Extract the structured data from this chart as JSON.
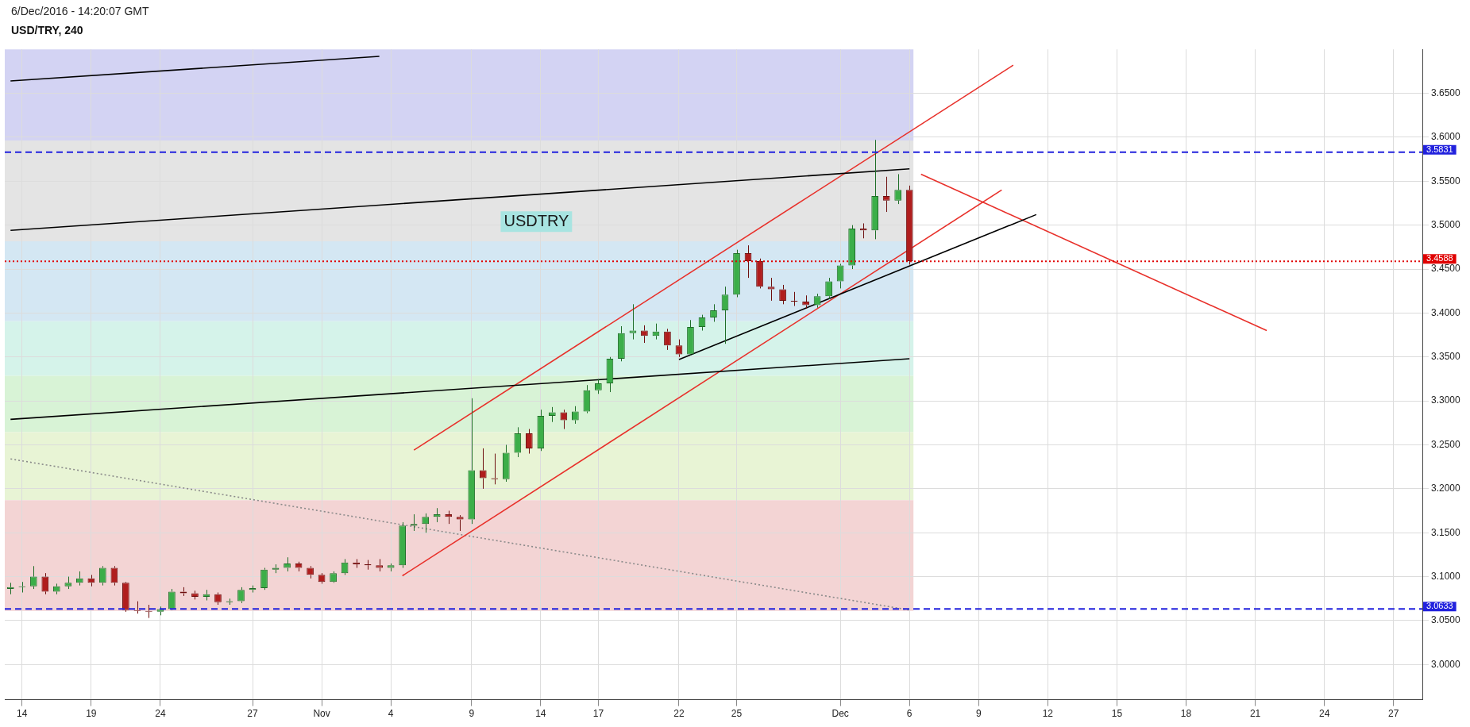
{
  "chart_data": {
    "type": "candlestick",
    "title": "USD/TRY, 240",
    "subtitle": "6/Dec/2016 - 14:20:07 GMT",
    "annotations": [
      "USDTRY"
    ],
    "categories": [
      null,
      "14",
      null,
      null,
      null,
      null,
      null,
      "19",
      null,
      null,
      null,
      null,
      null,
      "24",
      null,
      null,
      null,
      null,
      null,
      null,
      null,
      "27",
      null,
      null,
      null,
      null,
      null,
      "Nov",
      null,
      null,
      null,
      null,
      null,
      "4",
      null,
      null,
      null,
      null,
      null,
      null,
      "9",
      null,
      null,
      null,
      null,
      null,
      "14",
      null,
      null,
      null,
      null,
      "17",
      null,
      null,
      null,
      null,
      null,
      null,
      "22",
      null,
      null,
      null,
      null,
      "25",
      null,
      null,
      null,
      null,
      null,
      null,
      null,
      null,
      "Dec",
      null,
      null,
      null,
      null,
      null,
      "6",
      null,
      null,
      null,
      null,
      null,
      "9",
      null,
      null,
      null,
      null,
      null,
      "12",
      null,
      null,
      null,
      null,
      null,
      "15",
      null,
      null,
      null,
      null,
      null,
      "18",
      null,
      null,
      null,
      null,
      null,
      "21",
      null,
      null,
      null,
      null,
      null,
      "24",
      null,
      null,
      null,
      null,
      null,
      "27",
      null,
      null
    ],
    "ohlc": [
      [
        3.086,
        3.093,
        3.08,
        3.088
      ],
      [
        3.088,
        3.094,
        3.082,
        3.089
      ],
      [
        3.089,
        3.112,
        3.086,
        3.1
      ],
      [
        3.1,
        3.104,
        3.08,
        3.083
      ],
      [
        3.083,
        3.092,
        3.08,
        3.089
      ],
      [
        3.089,
        3.1,
        3.086,
        3.093
      ],
      [
        3.093,
        3.106,
        3.09,
        3.098
      ],
      [
        3.098,
        3.102,
        3.089,
        3.093
      ],
      [
        3.093,
        3.112,
        3.09,
        3.11
      ],
      [
        3.11,
        3.112,
        3.09,
        3.093
      ],
      [
        3.093,
        3.094,
        3.06,
        3.062
      ],
      [
        3.062,
        3.072,
        3.058,
        3.061
      ],
      [
        3.061,
        3.068,
        3.053,
        3.06
      ],
      [
        3.06,
        3.066,
        3.056,
        3.063
      ],
      [
        3.063,
        3.086,
        3.062,
        3.083
      ],
      [
        3.083,
        3.088,
        3.078,
        3.081
      ],
      [
        3.081,
        3.084,
        3.074,
        3.077
      ],
      [
        3.077,
        3.085,
        3.073,
        3.08
      ],
      [
        3.08,
        3.082,
        3.068,
        3.071
      ],
      [
        3.071,
        3.075,
        3.068,
        3.072
      ],
      [
        3.072,
        3.088,
        3.07,
        3.085
      ],
      [
        3.085,
        3.09,
        3.082,
        3.087
      ],
      [
        3.087,
        3.11,
        3.085,
        3.108
      ],
      [
        3.108,
        3.114,
        3.104,
        3.11
      ],
      [
        3.11,
        3.122,
        3.106,
        3.115
      ],
      [
        3.115,
        3.117,
        3.106,
        3.11
      ],
      [
        3.11,
        3.112,
        3.098,
        3.102
      ],
      [
        3.102,
        3.104,
        3.092,
        3.094
      ],
      [
        3.094,
        3.106,
        3.093,
        3.104
      ],
      [
        3.104,
        3.12,
        3.102,
        3.116
      ],
      [
        3.116,
        3.12,
        3.11,
        3.114
      ],
      [
        3.114,
        3.119,
        3.108,
        3.113
      ],
      [
        3.113,
        3.12,
        3.106,
        3.11
      ],
      [
        3.11,
        3.115,
        3.106,
        3.113
      ],
      [
        3.113,
        3.162,
        3.11,
        3.158
      ],
      [
        3.158,
        3.171,
        3.152,
        3.16
      ],
      [
        3.16,
        3.172,
        3.15,
        3.168
      ],
      [
        3.168,
        3.178,
        3.162,
        3.171
      ],
      [
        3.171,
        3.175,
        3.16,
        3.168
      ],
      [
        3.168,
        3.17,
        3.152,
        3.165
      ],
      [
        3.165,
        3.303,
        3.16,
        3.221
      ],
      [
        3.221,
        3.246,
        3.2,
        3.212
      ],
      [
        3.212,
        3.24,
        3.205,
        3.211
      ],
      [
        3.211,
        3.25,
        3.208,
        3.241
      ],
      [
        3.241,
        3.27,
        3.236,
        3.263
      ],
      [
        3.263,
        3.268,
        3.24,
        3.246
      ],
      [
        3.246,
        3.29,
        3.243,
        3.283
      ],
      [
        3.283,
        3.293,
        3.276,
        3.287
      ],
      [
        3.287,
        3.29,
        3.268,
        3.278
      ],
      [
        3.278,
        3.294,
        3.274,
        3.288
      ],
      [
        3.288,
        3.318,
        3.286,
        3.312
      ],
      [
        3.312,
        3.325,
        3.308,
        3.32
      ],
      [
        3.32,
        3.35,
        3.31,
        3.348
      ],
      [
        3.348,
        3.385,
        3.345,
        3.377
      ],
      [
        3.377,
        3.41,
        3.37,
        3.38
      ],
      [
        3.38,
        3.386,
        3.366,
        3.374
      ],
      [
        3.374,
        3.388,
        3.37,
        3.379
      ],
      [
        3.379,
        3.382,
        3.358,
        3.363
      ],
      [
        3.363,
        3.37,
        3.35,
        3.353
      ],
      [
        3.353,
        3.392,
        3.352,
        3.384
      ],
      [
        3.384,
        3.398,
        3.38,
        3.395
      ],
      [
        3.395,
        3.41,
        3.39,
        3.403
      ],
      [
        3.403,
        3.43,
        3.365,
        3.421
      ],
      [
        3.421,
        3.472,
        3.418,
        3.468
      ],
      [
        3.468,
        3.477,
        3.44,
        3.459
      ],
      [
        3.459,
        3.462,
        3.428,
        3.43
      ],
      [
        3.43,
        3.44,
        3.414,
        3.427
      ],
      [
        3.427,
        3.432,
        3.41,
        3.414
      ],
      [
        3.414,
        3.424,
        3.408,
        3.413
      ],
      [
        3.413,
        3.42,
        3.405,
        3.409
      ],
      [
        3.409,
        3.422,
        3.406,
        3.419
      ],
      [
        3.419,
        3.44,
        3.416,
        3.436
      ],
      [
        3.436,
        3.456,
        3.428,
        3.454
      ],
      [
        3.454,
        3.5,
        3.45,
        3.496
      ],
      [
        3.496,
        3.502,
        3.485,
        3.494
      ],
      [
        3.494,
        3.597,
        3.484,
        3.533
      ],
      [
        3.533,
        3.555,
        3.515,
        3.528
      ],
      [
        3.528,
        3.558,
        3.524,
        3.54
      ],
      [
        3.54,
        3.545,
        3.455,
        3.459
      ],
      null,
      null,
      null,
      null,
      null,
      null,
      null,
      null,
      null,
      null,
      null,
      null,
      null,
      null,
      null,
      null,
      null,
      null,
      null,
      null,
      null,
      null,
      null,
      null,
      null,
      null,
      null,
      null,
      null,
      null,
      null,
      null,
      null,
      null,
      null,
      null,
      null,
      null,
      null,
      null,
      null,
      null,
      null,
      null
    ],
    "series": [
      {
        "type": "line",
        "color": "#000000",
        "values": [
          3.664,
          null,
          null,
          null,
          null,
          null,
          null,
          null,
          null,
          null,
          null,
          null,
          null,
          null,
          null,
          null,
          null,
          null,
          null,
          null,
          null,
          null,
          null,
          null,
          null,
          null,
          null,
          null,
          null,
          null,
          null,
          null,
          3.692,
          null,
          null,
          null,
          null,
          null,
          null,
          null,
          null,
          null,
          null,
          null,
          null,
          null,
          null,
          null,
          null,
          null,
          null,
          null,
          null,
          null,
          null,
          null,
          null,
          null,
          null,
          null,
          null,
          null,
          null,
          null,
          null,
          null,
          null,
          null,
          null,
          null,
          null,
          null,
          null,
          null,
          null,
          null,
          null,
          null,
          null,
          null,
          null,
          null,
          null,
          null,
          null,
          null,
          null,
          null,
          null,
          null,
          null,
          null,
          null,
          null,
          null,
          null,
          null,
          null,
          null,
          null,
          null,
          null,
          null,
          null,
          null,
          null,
          null,
          null,
          null,
          null,
          null,
          null,
          null,
          null,
          null,
          null,
          null,
          null,
          null,
          null,
          null,
          null,
          null
        ]
      },
      {
        "type": "line",
        "color": "#000000",
        "values": [
          3.494,
          null,
          null,
          null,
          null,
          null,
          null,
          null,
          null,
          null,
          null,
          null,
          null,
          null,
          null,
          null,
          null,
          null,
          null,
          null,
          null,
          null,
          null,
          null,
          null,
          null,
          null,
          null,
          null,
          null,
          null,
          null,
          null,
          null,
          null,
          null,
          null,
          null,
          null,
          null,
          null,
          null,
          null,
          null,
          null,
          null,
          null,
          null,
          null,
          null,
          null,
          null,
          null,
          null,
          null,
          null,
          null,
          null,
          null,
          null,
          null,
          null,
          null,
          null,
          null,
          null,
          null,
          null,
          null,
          null,
          null,
          null,
          null,
          null,
          null,
          null,
          null,
          null,
          3.564,
          null,
          null,
          null,
          null,
          null,
          null,
          null,
          null,
          null,
          null,
          null,
          null,
          null,
          null,
          null,
          null,
          null,
          null,
          null,
          null,
          null,
          null,
          null,
          null,
          null,
          null,
          null,
          null,
          null,
          null,
          null,
          null,
          null,
          null,
          null,
          null,
          null,
          null,
          null,
          null,
          null,
          null,
          null,
          null
        ]
      },
      {
        "type": "line",
        "color": "#000000",
        "values": [
          3.279,
          null,
          null,
          null,
          null,
          null,
          null,
          null,
          null,
          null,
          null,
          null,
          null,
          null,
          null,
          null,
          null,
          null,
          null,
          null,
          null,
          null,
          null,
          null,
          null,
          null,
          null,
          null,
          null,
          null,
          null,
          null,
          null,
          null,
          null,
          null,
          null,
          null,
          null,
          null,
          null,
          null,
          null,
          null,
          null,
          null,
          null,
          null,
          null,
          null,
          null,
          null,
          null,
          null,
          null,
          null,
          null,
          null,
          null,
          null,
          null,
          null,
          null,
          null,
          null,
          null,
          null,
          null,
          null,
          null,
          null,
          null,
          null,
          null,
          null,
          null,
          null,
          null,
          3.348,
          null,
          null,
          null,
          null,
          null,
          null,
          null,
          null,
          null,
          null,
          null,
          null,
          null,
          null,
          null,
          null,
          null,
          null,
          null,
          null,
          null,
          null,
          null,
          null,
          null,
          null,
          null,
          null,
          null,
          null,
          null,
          null,
          null,
          null,
          null,
          null,
          null,
          null,
          null,
          null,
          null,
          null,
          null,
          null
        ]
      },
      {
        "type": "line",
        "color": "#000000",
        "values": [
          null,
          null,
          null,
          null,
          null,
          null,
          null,
          null,
          null,
          null,
          null,
          null,
          null,
          null,
          null,
          null,
          null,
          null,
          null,
          null,
          null,
          null,
          null,
          null,
          null,
          null,
          null,
          null,
          null,
          null,
          null,
          null,
          null,
          null,
          null,
          null,
          null,
          null,
          null,
          null,
          null,
          null,
          null,
          null,
          null,
          null,
          null,
          null,
          null,
          null,
          null,
          null,
          null,
          null,
          null,
          null,
          null,
          null,
          3.347,
          null,
          null,
          null,
          null,
          null,
          null,
          null,
          null,
          null,
          null,
          null,
          null,
          null,
          null,
          null,
          null,
          null,
          null,
          null,
          null,
          null,
          null,
          null,
          null,
          null,
          null,
          null,
          null,
          null,
          null,
          3.512,
          null,
          null,
          null,
          null,
          null,
          null,
          null,
          null,
          null,
          null,
          null,
          null,
          null,
          null,
          null,
          null,
          null,
          null,
          null,
          null,
          null,
          null,
          null,
          null,
          null,
          null,
          null,
          null,
          null,
          null,
          null,
          null,
          null
        ]
      },
      {
        "type": "line",
        "color": "#e8302a",
        "values": [
          null,
          null,
          null,
          null,
          null,
          null,
          null,
          null,
          null,
          null,
          null,
          null,
          null,
          null,
          null,
          null,
          null,
          null,
          null,
          null,
          null,
          null,
          null,
          null,
          null,
          null,
          null,
          null,
          null,
          null,
          null,
          null,
          null,
          null,
          null,
          3.244,
          null,
          null,
          null,
          null,
          null,
          null,
          null,
          null,
          null,
          null,
          null,
          null,
          null,
          null,
          null,
          null,
          null,
          null,
          null,
          null,
          null,
          null,
          null,
          null,
          null,
          null,
          null,
          null,
          null,
          null,
          null,
          null,
          null,
          null,
          null,
          null,
          null,
          null,
          null,
          null,
          null,
          null,
          null,
          null,
          null,
          null,
          null,
          null,
          null,
          null,
          null,
          3.682,
          null,
          null,
          null,
          null,
          null,
          null,
          null,
          null,
          null,
          null,
          null,
          null,
          null,
          null,
          null,
          null,
          null,
          null,
          null,
          null,
          null,
          null,
          null,
          null,
          null,
          null,
          null,
          null,
          null,
          null,
          null,
          null,
          null,
          null,
          null
        ]
      },
      {
        "type": "line",
        "color": "#e8302a",
        "values": [
          null,
          null,
          null,
          null,
          null,
          null,
          null,
          null,
          null,
          null,
          null,
          null,
          null,
          null,
          null,
          null,
          null,
          null,
          null,
          null,
          null,
          null,
          null,
          null,
          null,
          null,
          null,
          null,
          null,
          null,
          null,
          null,
          null,
          null,
          3.101,
          null,
          null,
          null,
          null,
          null,
          null,
          null,
          null,
          null,
          null,
          null,
          null,
          null,
          null,
          null,
          null,
          null,
          null,
          null,
          null,
          null,
          null,
          null,
          null,
          null,
          null,
          null,
          null,
          null,
          null,
          null,
          null,
          null,
          null,
          null,
          null,
          null,
          null,
          null,
          null,
          null,
          null,
          null,
          null,
          null,
          null,
          null,
          null,
          null,
          null,
          null,
          3.54,
          null,
          null,
          null,
          null,
          null,
          null,
          null,
          null,
          null,
          null,
          null,
          null,
          null,
          null,
          null,
          null,
          null,
          null,
          null,
          null,
          null,
          null,
          null,
          null,
          null,
          null,
          null,
          null,
          null,
          null,
          null,
          null,
          null,
          null,
          null,
          null
        ]
      },
      {
        "type": "line",
        "color": "#e8302a",
        "values": [
          null,
          null,
          null,
          null,
          null,
          null,
          null,
          null,
          null,
          null,
          null,
          null,
          null,
          null,
          null,
          null,
          null,
          null,
          null,
          null,
          null,
          null,
          null,
          null,
          null,
          null,
          null,
          null,
          null,
          null,
          null,
          null,
          null,
          null,
          null,
          null,
          null,
          null,
          null,
          null,
          null,
          null,
          null,
          null,
          null,
          null,
          null,
          null,
          null,
          null,
          null,
          null,
          null,
          null,
          null,
          null,
          null,
          null,
          null,
          null,
          null,
          null,
          null,
          null,
          null,
          null,
          null,
          null,
          null,
          null,
          null,
          null,
          null,
          null,
          null,
          null,
          null,
          null,
          null,
          3.558,
          null,
          null,
          null,
          null,
          null,
          null,
          null,
          null,
          null,
          null,
          null,
          null,
          null,
          null,
          null,
          null,
          null,
          null,
          null,
          null,
          null,
          null,
          null,
          null,
          null,
          null,
          null,
          null,
          null,
          3.38,
          null,
          null,
          null,
          null,
          null,
          null,
          null,
          null,
          null,
          null,
          null,
          null,
          null
        ]
      },
      {
        "type": "line",
        "color": "#8a8a8a",
        "line_style": "dotted",
        "values": [
          3.234,
          null,
          null,
          null,
          null,
          null,
          null,
          null,
          null,
          null,
          null,
          null,
          null,
          null,
          null,
          null,
          null,
          null,
          null,
          null,
          null,
          null,
          null,
          null,
          null,
          null,
          null,
          null,
          null,
          null,
          null,
          null,
          null,
          null,
          null,
          null,
          null,
          null,
          null,
          null,
          null,
          null,
          null,
          null,
          null,
          null,
          null,
          null,
          null,
          null,
          null,
          null,
          null,
          null,
          null,
          null,
          null,
          null,
          null,
          null,
          null,
          null,
          null,
          null,
          null,
          null,
          null,
          null,
          null,
          null,
          null,
          null,
          null,
          null,
          null,
          null,
          null,
          null,
          3.062,
          null,
          null,
          null,
          null,
          null,
          null,
          null,
          null,
          null,
          null,
          null,
          null,
          null,
          null,
          null,
          null,
          null,
          null,
          null,
          null,
          null,
          null,
          null,
          null,
          null,
          null,
          null,
          null,
          null,
          null,
          null,
          null,
          null,
          null,
          null,
          null,
          null,
          null,
          null,
          null,
          null,
          null,
          null,
          null
        ]
      }
    ],
    "ylim": [
      2.96,
      3.7
    ],
    "yticks": [
      {
        "value": 3.0,
        "label": "3.0000"
      },
      {
        "value": 3.05,
        "label": "3.0500"
      },
      {
        "value": 3.1,
        "label": "3.1000"
      },
      {
        "value": 3.15,
        "label": "3.1500"
      },
      {
        "value": 3.2,
        "label": "3.2000"
      },
      {
        "value": 3.25,
        "label": "3.2500"
      },
      {
        "value": 3.3,
        "label": "3.3000"
      },
      {
        "value": 3.35,
        "label": "3.3500"
      },
      {
        "value": 3.4,
        "label": "3.4000"
      },
      {
        "value": 3.45,
        "label": "3.4500"
      },
      {
        "value": 3.5,
        "label": "3.5000"
      },
      {
        "value": 3.55,
        "label": "3.5500"
      },
      {
        "value": 3.6,
        "label": "3.6000"
      },
      {
        "value": 3.65,
        "label": "3.6500"
      }
    ],
    "ref_lines": [
      {
        "axis": "y",
        "value": 3.5831,
        "label": "3.5831",
        "color": "#2222dd",
        "line_style": "dashed"
      },
      {
        "axis": "y",
        "value": 3.0633,
        "label": "3.0633",
        "color": "#2222dd",
        "line_style": "dashed"
      },
      {
        "axis": "y",
        "value": 3.4588,
        "label": "3.4588",
        "color": "#e00000",
        "line_style": "dotted"
      }
    ],
    "bands": [
      {
        "axis": "y",
        "from": 3.5963,
        "to": 3.7,
        "color": "#d3d3f3"
      },
      {
        "axis": "y",
        "from": 3.4816,
        "to": 3.5963,
        "color": "#e4e4e4"
      },
      {
        "axis": "y",
        "from": 3.3906,
        "to": 3.4816,
        "color": "#d4e7f3"
      },
      {
        "axis": "y",
        "from": 3.3286,
        "to": 3.3906,
        "color": "#d5f3ea"
      },
      {
        "axis": "y",
        "from": 3.2645,
        "to": 3.3286,
        "color": "#d8f3d6"
      },
      {
        "axis": "y",
        "from": 3.187,
        "to": 3.2645,
        "color": "#e8f4d5"
      },
      {
        "axis": "y",
        "from": 3.061,
        "to": 3.187,
        "color": "#f3d4d4"
      }
    ],
    "grid": true,
    "legend": false
  }
}
